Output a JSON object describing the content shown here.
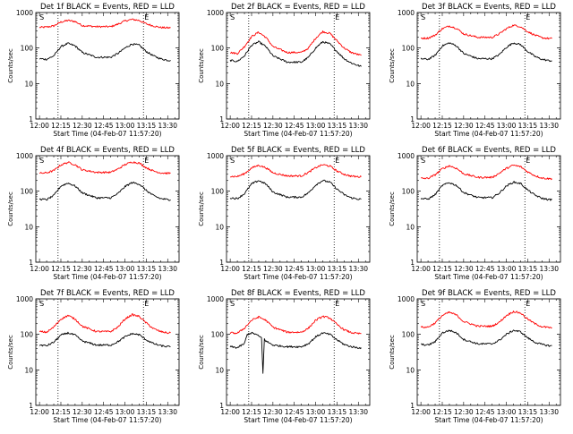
{
  "chart_data": [
    {
      "type": "line",
      "title": "Det 1f BLACK = Events, RED = LLD",
      "ylabel": "Counts/sec",
      "xlabel": "Start Time (04-Feb-07 11:57:20)",
      "x_ticks": [
        "12:00",
        "12:15",
        "12:30",
        "12:45",
        "13:00",
        "13:15",
        "13:30"
      ],
      "y_ticks": [
        "1",
        "10",
        "100",
        "1000"
      ],
      "ylim": [
        1,
        1000
      ],
      "yscale": "log",
      "markers": [
        "S",
        "E"
      ],
      "series": [
        {
          "color": "#000000",
          "x": [
            "12:00",
            "12:05",
            "12:10",
            "12:15",
            "12:20",
            "12:25",
            "12:30",
            "12:40",
            "12:50",
            "12:55",
            "13:00",
            "13:05",
            "13:10",
            "13:15",
            "13:20",
            "13:25",
            "13:30",
            "13:32"
          ],
          "values": [
            50,
            48,
            60,
            110,
            135,
            115,
            75,
            55,
            55,
            70,
            100,
            130,
            120,
            80,
            60,
            50,
            45,
            45
          ]
        },
        {
          "color": "#ff0000",
          "x": [
            "12:00",
            "12:05",
            "12:10",
            "12:15",
            "12:20",
            "12:25",
            "12:30",
            "12:40",
            "12:50",
            "12:55",
            "13:00",
            "13:05",
            "13:10",
            "13:15",
            "13:20",
            "13:25",
            "13:30",
            "13:32"
          ],
          "values": [
            380,
            390,
            420,
            540,
            600,
            560,
            430,
            400,
            400,
            470,
            580,
            640,
            600,
            480,
            420,
            380,
            370,
            370
          ]
        }
      ]
    },
    {
      "type": "line",
      "title": "Det 2f BLACK = Events, RED = LLD",
      "ylabel": "Counts/sec",
      "xlabel": "Start Time (04-Feb-07 11:57:20)",
      "x_ticks": [
        "12:00",
        "12:15",
        "12:30",
        "12:45",
        "13:00",
        "13:15",
        "13:30"
      ],
      "y_ticks": [
        "1",
        "10",
        "100",
        "1000"
      ],
      "ylim": [
        1,
        1000
      ],
      "yscale": "log",
      "markers": [
        "S",
        "E"
      ],
      "series": [
        {
          "color": "#000000",
          "x": [
            "12:00",
            "12:05",
            "12:10",
            "12:15",
            "12:20",
            "12:25",
            "12:30",
            "12:40",
            "12:50",
            "12:55",
            "13:00",
            "13:05",
            "13:10",
            "13:15",
            "13:20",
            "13:25",
            "13:30",
            "13:32"
          ],
          "values": [
            45,
            42,
            60,
            120,
            150,
            110,
            60,
            40,
            40,
            55,
            100,
            150,
            130,
            80,
            50,
            38,
            32,
            30
          ]
        },
        {
          "color": "#ff0000",
          "x": [
            "12:00",
            "12:05",
            "12:10",
            "12:15",
            "12:20",
            "12:25",
            "12:30",
            "12:40",
            "12:50",
            "12:55",
            "13:00",
            "13:05",
            "13:10",
            "13:15",
            "13:20",
            "13:25",
            "13:30",
            "13:32"
          ],
          "values": [
            75,
            70,
            110,
            210,
            280,
            200,
            110,
            75,
            75,
            100,
            190,
            290,
            260,
            160,
            100,
            75,
            65,
            62
          ]
        }
      ]
    },
    {
      "type": "line",
      "title": "Det 3f BLACK = Events, RED = LLD",
      "ylabel": "Counts/sec",
      "xlabel": "Start Time (04-Feb-07 11:57:20)",
      "x_ticks": [
        "12:00",
        "12:15",
        "12:30",
        "12:45",
        "13:00",
        "13:15",
        "13:30"
      ],
      "y_ticks": [
        "1",
        "10",
        "100",
        "1000"
      ],
      "ylim": [
        1,
        1000
      ],
      "yscale": "log",
      "markers": [
        "S",
        "E"
      ],
      "series": [
        {
          "color": "#000000",
          "x": [
            "12:00",
            "12:05",
            "12:10",
            "12:15",
            "12:20",
            "12:25",
            "12:30",
            "12:40",
            "12:50",
            "12:55",
            "13:00",
            "13:05",
            "13:10",
            "13:15",
            "13:20",
            "13:25",
            "13:30",
            "13:32"
          ],
          "values": [
            50,
            48,
            62,
            115,
            140,
            115,
            70,
            50,
            50,
            65,
            105,
            140,
            125,
            80,
            58,
            48,
            44,
            44
          ]
        },
        {
          "color": "#ff0000",
          "x": [
            "12:00",
            "12:05",
            "12:10",
            "12:15",
            "12:20",
            "12:25",
            "12:30",
            "12:40",
            "12:50",
            "12:55",
            "13:00",
            "13:05",
            "13:10",
            "13:15",
            "13:20",
            "13:25",
            "13:30",
            "13:32"
          ],
          "values": [
            190,
            190,
            230,
            350,
            420,
            360,
            250,
            200,
            200,
            250,
            350,
            440,
            400,
            290,
            230,
            195,
            185,
            185
          ]
        }
      ]
    },
    {
      "type": "line",
      "title": "Det 4f BLACK = Events, RED = LLD",
      "ylabel": "Counts/sec",
      "xlabel": "Start Time (04-Feb-07 11:57:20)",
      "x_ticks": [
        "12:00",
        "12:15",
        "12:30",
        "12:45",
        "13:00",
        "13:15",
        "13:30"
      ],
      "y_ticks": [
        "1",
        "10",
        "100",
        "1000"
      ],
      "ylim": [
        1,
        1000
      ],
      "yscale": "log",
      "markers": [
        "S",
        "E"
      ],
      "series": [
        {
          "color": "#000000",
          "x": [
            "12:00",
            "12:05",
            "12:10",
            "12:15",
            "12:20",
            "12:25",
            "12:30",
            "12:40",
            "12:50",
            "12:55",
            "13:00",
            "13:05",
            "13:10",
            "13:15",
            "13:20",
            "13:25",
            "13:30",
            "13:32"
          ],
          "values": [
            60,
            58,
            75,
            140,
            170,
            140,
            90,
            65,
            65,
            85,
            135,
            175,
            160,
            105,
            75,
            62,
            58,
            58
          ]
        },
        {
          "color": "#ff0000",
          "x": [
            "12:00",
            "12:05",
            "12:10",
            "12:15",
            "12:20",
            "12:25",
            "12:30",
            "12:40",
            "12:50",
            "12:55",
            "13:00",
            "13:05",
            "13:10",
            "13:15",
            "13:20",
            "13:25",
            "13:30",
            "13:32"
          ],
          "values": [
            320,
            330,
            380,
            550,
            650,
            560,
            400,
            340,
            340,
            420,
            560,
            670,
            620,
            460,
            370,
            330,
            320,
            320
          ]
        }
      ]
    },
    {
      "type": "line",
      "title": "Det 5f BLACK = Events, RED = LLD",
      "ylabel": "Counts/sec",
      "xlabel": "Start Time (04-Feb-07 11:57:20)",
      "x_ticks": [
        "12:00",
        "12:15",
        "12:30",
        "12:45",
        "13:00",
        "13:15",
        "13:30"
      ],
      "y_ticks": [
        "1",
        "10",
        "100",
        "1000"
      ],
      "ylim": [
        1,
        1000
      ],
      "yscale": "log",
      "markers": [
        "S",
        "E"
      ],
      "series": [
        {
          "color": "#000000",
          "x": [
            "12:00",
            "12:05",
            "12:10",
            "12:15",
            "12:20",
            "12:25",
            "12:30",
            "12:40",
            "12:50",
            "12:55",
            "13:00",
            "13:05",
            "13:10",
            "13:15",
            "13:20",
            "13:25",
            "13:30",
            "13:32"
          ],
          "values": [
            65,
            62,
            85,
            160,
            200,
            160,
            95,
            68,
            68,
            90,
            150,
            200,
            180,
            115,
            80,
            65,
            60,
            60
          ]
        },
        {
          "color": "#ff0000",
          "x": [
            "12:00",
            "12:05",
            "12:10",
            "12:15",
            "12:20",
            "12:25",
            "12:30",
            "12:40",
            "12:50",
            "12:55",
            "13:00",
            "13:05",
            "13:10",
            "13:15",
            "13:20",
            "13:25",
            "13:30",
            "13:32"
          ],
          "values": [
            260,
            260,
            310,
            450,
            540,
            460,
            330,
            270,
            270,
            340,
            460,
            560,
            510,
            370,
            300,
            265,
            255,
            255
          ]
        }
      ]
    },
    {
      "type": "line",
      "title": "Det 6f BLACK = Events, RED = LLD",
      "ylabel": "Counts/sec",
      "xlabel": "Start Time (04-Feb-07 11:57:20)",
      "x_ticks": [
        "12:00",
        "12:15",
        "12:30",
        "12:45",
        "13:00",
        "13:15",
        "13:30"
      ],
      "y_ticks": [
        "1",
        "10",
        "100",
        "1000"
      ],
      "ylim": [
        1,
        1000
      ],
      "yscale": "log",
      "markers": [
        "S",
        "E"
      ],
      "series": [
        {
          "color": "#000000",
          "x": [
            "12:00",
            "12:05",
            "12:10",
            "12:15",
            "12:20",
            "12:25",
            "12:30",
            "12:40",
            "12:50",
            "12:55",
            "13:00",
            "13:05",
            "13:10",
            "13:15",
            "13:20",
            "13:25",
            "13:30",
            "13:32"
          ],
          "values": [
            62,
            60,
            80,
            145,
            175,
            145,
            92,
            66,
            66,
            88,
            140,
            180,
            165,
            108,
            78,
            63,
            58,
            58
          ]
        },
        {
          "color": "#ff0000",
          "x": [
            "12:00",
            "12:05",
            "12:10",
            "12:15",
            "12:20",
            "12:25",
            "12:30",
            "12:40",
            "12:50",
            "12:55",
            "13:00",
            "13:05",
            "13:10",
            "13:15",
            "13:20",
            "13:25",
            "13:30",
            "13:32"
          ],
          "values": [
            230,
            230,
            290,
            430,
            520,
            440,
            310,
            245,
            245,
            320,
            440,
            540,
            490,
            350,
            275,
            235,
            225,
            225
          ]
        }
      ]
    },
    {
      "type": "line",
      "title": "Det 7f BLACK = Events, RED = LLD",
      "ylabel": "Counts/sec",
      "xlabel": "Start Time (04-Feb-07 11:57:20)",
      "x_ticks": [
        "12:00",
        "12:15",
        "12:30",
        "12:45",
        "13:00",
        "13:15",
        "13:30"
      ],
      "y_ticks": [
        "1",
        "10",
        "100",
        "1000"
      ],
      "ylim": [
        1,
        1000
      ],
      "yscale": "log",
      "markers": [
        "S",
        "E"
      ],
      "series": [
        {
          "color": "#000000",
          "x": [
            "12:00",
            "12:05",
            "12:10",
            "12:15",
            "12:20",
            "12:25",
            "12:30",
            "12:40",
            "12:50",
            "12:55",
            "13:00",
            "13:05",
            "13:10",
            "13:15",
            "13:20",
            "13:25",
            "13:30",
            "13:32"
          ],
          "values": [
            50,
            48,
            60,
            95,
            110,
            95,
            65,
            50,
            50,
            62,
            85,
            105,
            98,
            70,
            55,
            48,
            45,
            45
          ]
        },
        {
          "color": "#ff0000",
          "x": [
            "12:00",
            "12:05",
            "12:10",
            "12:15",
            "12:20",
            "12:25",
            "12:30",
            "12:40",
            "12:50",
            "12:55",
            "13:00",
            "13:05",
            "13:10",
            "13:15",
            "13:20",
            "13:25",
            "13:30",
            "13:32"
          ],
          "values": [
            120,
            115,
            160,
            270,
            340,
            270,
            170,
            120,
            120,
            160,
            270,
            360,
            320,
            210,
            145,
            120,
            110,
            110
          ]
        }
      ]
    },
    {
      "type": "line",
      "title": "Det 8f BLACK = Events, RED = LLD",
      "ylabel": "Counts/sec",
      "xlabel": "Start Time (04-Feb-07 11:57:20)",
      "x_ticks": [
        "12:00",
        "12:15",
        "12:30",
        "12:45",
        "13:00",
        "13:15",
        "13:30"
      ],
      "y_ticks": [
        "1",
        "10",
        "100",
        "1000"
      ],
      "ylim": [
        1,
        1000
      ],
      "yscale": "log",
      "markers": [
        "S",
        "E"
      ],
      "series": [
        {
          "color": "#000000",
          "x": [
            "12:00",
            "12:05",
            "12:10",
            "12:12",
            "12:15",
            "12:18",
            "12:22",
            "12:23",
            "12:24",
            "12:25",
            "12:30",
            "12:40",
            "12:50",
            "12:55",
            "13:00",
            "13:05",
            "13:10",
            "13:15",
            "13:20",
            "13:25",
            "13:30",
            "13:32"
          ],
          "values": [
            45,
            42,
            55,
            100,
            110,
            100,
            80,
            8,
            75,
            65,
            50,
            45,
            45,
            55,
            85,
            110,
            100,
            70,
            52,
            45,
            42,
            42
          ]
        },
        {
          "color": "#ff0000",
          "x": [
            "12:00",
            "12:05",
            "12:10",
            "12:15",
            "12:20",
            "12:25",
            "12:30",
            "12:40",
            "12:50",
            "12:55",
            "13:00",
            "13:05",
            "13:10",
            "13:15",
            "13:20",
            "13:25",
            "13:30",
            "13:32"
          ],
          "values": [
            110,
            108,
            150,
            250,
            310,
            250,
            160,
            115,
            115,
            150,
            250,
            320,
            290,
            190,
            135,
            112,
            105,
            105
          ]
        }
      ]
    },
    {
      "type": "line",
      "title": "Det 9f BLACK = Events, RED = LLD",
      "ylabel": "Counts/sec",
      "xlabel": "Start Time (04-Feb-07 11:57:20)",
      "x_ticks": [
        "12:00",
        "12:15",
        "12:30",
        "12:45",
        "13:00",
        "13:15",
        "13:30"
      ],
      "y_ticks": [
        "1",
        "10",
        "100",
        "1000"
      ],
      "ylim": [
        1,
        1000
      ],
      "yscale": "log",
      "markers": [
        "S",
        "E"
      ],
      "series": [
        {
          "color": "#000000",
          "x": [
            "12:00",
            "12:05",
            "12:10",
            "12:15",
            "12:20",
            "12:25",
            "12:30",
            "12:40",
            "12:50",
            "12:55",
            "13:00",
            "13:05",
            "13:10",
            "13:15",
            "13:20",
            "13:25",
            "13:30",
            "13:32"
          ],
          "values": [
            52,
            50,
            62,
            110,
            130,
            110,
            72,
            54,
            54,
            68,
            100,
            130,
            118,
            80,
            60,
            52,
            48,
            48
          ]
        },
        {
          "color": "#ff0000",
          "x": [
            "12:00",
            "12:05",
            "12:10",
            "12:15",
            "12:20",
            "12:25",
            "12:30",
            "12:40",
            "12:50",
            "12:55",
            "13:00",
            "13:05",
            "13:10",
            "13:15",
            "13:20",
            "13:25",
            "13:30",
            "13:32"
          ],
          "values": [
            160,
            160,
            210,
            340,
            420,
            350,
            230,
            170,
            170,
            220,
            340,
            440,
            400,
            270,
            200,
            165,
            155,
            155
          ]
        }
      ]
    }
  ]
}
